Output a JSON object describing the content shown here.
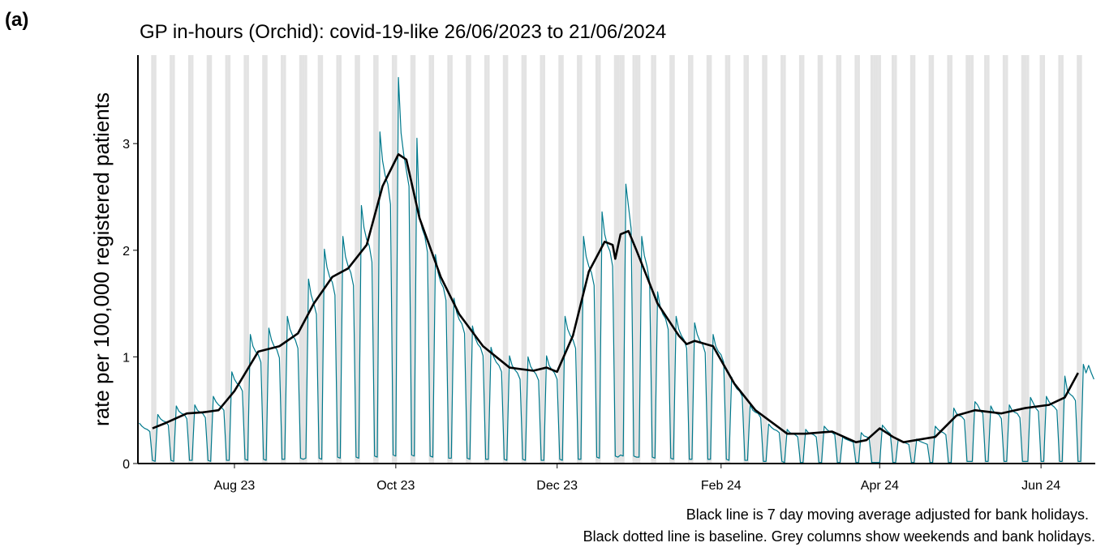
{
  "chart_data": {
    "type": "line",
    "panel_label": "(a)",
    "title": "GP in-hours (Orchid): covid-19-like 26/06/2023 to 21/06/2024",
    "y_label": "rate per 100,000 registered patients",
    "notes": [
      "Black line is 7 day moving average adjusted for bank holidays.",
      "Black dotted line is baseline. Grey columns show weekends and bank holidays."
    ],
    "xlim": [
      -0.5,
      361.5
    ],
    "xticks": [
      {
        "value": 36,
        "label": "Aug 23"
      },
      {
        "value": 97,
        "label": "Oct 23"
      },
      {
        "value": 158,
        "label": "Dec 23"
      },
      {
        "value": 220,
        "label": "Feb 24"
      },
      {
        "value": 280,
        "label": "Apr 24"
      },
      {
        "value": 341,
        "label": "Jun 24"
      }
    ],
    "ylim": [
      0,
      3.83
    ],
    "yticks": [
      0,
      1,
      2,
      3
    ],
    "shade_color": "#e3e3e3",
    "bank_holidays": [
      63,
      182,
      183,
      189,
      277,
      280,
      315,
      336
    ],
    "x": [
      0,
      1,
      2,
      3,
      4,
      5,
      6,
      7,
      8,
      9,
      10,
      11,
      12,
      13,
      14,
      15,
      16,
      17,
      18,
      19,
      20,
      21,
      22,
      23,
      24,
      25,
      26,
      27,
      28,
      29,
      30,
      31,
      32,
      33,
      34,
      35,
      36,
      37,
      38,
      39,
      40,
      41,
      42,
      43,
      44,
      45,
      46,
      47,
      48,
      49,
      50,
      51,
      52,
      53,
      54,
      55,
      56,
      57,
      58,
      59,
      60,
      61,
      62,
      63,
      64,
      65,
      66,
      67,
      68,
      69,
      70,
      71,
      72,
      73,
      74,
      75,
      76,
      77,
      78,
      79,
      80,
      81,
      82,
      83,
      84,
      85,
      86,
      87,
      88,
      89,
      90,
      91,
      92,
      93,
      94,
      95,
      96,
      97,
      98,
      99,
      100,
      101,
      102,
      103,
      104,
      105,
      106,
      107,
      108,
      109,
      110,
      111,
      112,
      113,
      114,
      115,
      116,
      117,
      118,
      119,
      120,
      121,
      122,
      123,
      124,
      125,
      126,
      127,
      128,
      129,
      130,
      131,
      132,
      133,
      134,
      135,
      136,
      137,
      138,
      139,
      140,
      141,
      142,
      143,
      144,
      145,
      146,
      147,
      148,
      149,
      150,
      151,
      152,
      153,
      154,
      155,
      156,
      157,
      158,
      159,
      160,
      161,
      162,
      163,
      164,
      165,
      166,
      167,
      168,
      169,
      170,
      171,
      172,
      173,
      174,
      175,
      176,
      177,
      178,
      179,
      180,
      181,
      182,
      183,
      184,
      185,
      186,
      187,
      188,
      189,
      190,
      191,
      192,
      193,
      194,
      195,
      196,
      197,
      198,
      199,
      200,
      201,
      202,
      203,
      204,
      205,
      206,
      207,
      208,
      209,
      210,
      211,
      212,
      213,
      214,
      215,
      216,
      217,
      218,
      219,
      220,
      221,
      222,
      223,
      224,
      225,
      226,
      227,
      228,
      229,
      230,
      231,
      232,
      233,
      234,
      235,
      236,
      237,
      238,
      239,
      240,
      241,
      242,
      243,
      244,
      245,
      246,
      247,
      248,
      249,
      250,
      251,
      252,
      253,
      254,
      255,
      256,
      257,
      258,
      259,
      260,
      261,
      262,
      263,
      264,
      265,
      266,
      267,
      268,
      269,
      270,
      271,
      272,
      273,
      274,
      275,
      276,
      277,
      278,
      279,
      280,
      281,
      282,
      283,
      284,
      285,
      286,
      287,
      288,
      289,
      290,
      291,
      292,
      293,
      294,
      295,
      296,
      297,
      298,
      299,
      300,
      301,
      302,
      303,
      304,
      305,
      306,
      307,
      308,
      309,
      310,
      311,
      312,
      313,
      314,
      315,
      316,
      317,
      318,
      319,
      320,
      321,
      322,
      323,
      324,
      325,
      326,
      327,
      328,
      329,
      330,
      331,
      332,
      333,
      334,
      335,
      336,
      337,
      338,
      339,
      340,
      341,
      342,
      343,
      344,
      345,
      346,
      347,
      348,
      349,
      350,
      351,
      352,
      353,
      354,
      355,
      356,
      357,
      358,
      359,
      360,
      361
    ],
    "series": [
      {
        "color": "#00798c",
        "values": [
          0.38,
          0.35,
          0.33,
          0.32,
          0.3,
          0.03,
          0.02,
          0.46,
          0.42,
          0.4,
          0.39,
          0.36,
          0.03,
          0.02,
          0.54,
          0.49,
          0.47,
          0.46,
          0.42,
          0.03,
          0.03,
          0.55,
          0.5,
          0.48,
          0.47,
          0.43,
          0.03,
          0.02,
          0.63,
          0.58,
          0.55,
          0.53,
          0.5,
          0.03,
          0.03,
          0.86,
          0.79,
          0.75,
          0.73,
          0.68,
          0.04,
          0.03,
          1.21,
          1.1,
          1.05,
          1.02,
          0.95,
          0.04,
          0.03,
          1.27,
          1.16,
          1.1,
          1.07,
          0.99,
          0.04,
          0.04,
          1.38,
          1.26,
          1.2,
          1.16,
          1.08,
          0.05,
          0.04,
          0.05,
          1.73,
          1.58,
          1.5,
          1.4,
          0.05,
          0.04,
          2.01,
          1.84,
          1.75,
          1.7,
          1.58,
          0.06,
          0.05,
          2.13,
          1.94,
          1.85,
          1.79,
          1.67,
          0.06,
          0.05,
          2.42,
          2.21,
          2.1,
          2.04,
          1.89,
          0.07,
          0.06,
          3.11,
          2.84,
          2.7,
          2.62,
          2.43,
          0.08,
          0.07,
          3.62,
          3.1,
          2.9,
          2.75,
          2.6,
          0.08,
          0.07,
          3.05,
          2.31,
          2.2,
          2.13,
          1.98,
          0.07,
          0.06,
          1.96,
          1.79,
          1.7,
          1.65,
          1.53,
          0.05,
          0.05,
          1.55,
          1.42,
          1.35,
          1.31,
          1.22,
          0.05,
          0.04,
          1.29,
          1.18,
          1.12,
          1.09,
          1.01,
          0.04,
          0.04,
          1.09,
          1.0,
          0.95,
          0.92,
          0.86,
          0.04,
          0.03,
          1.01,
          0.92,
          0.88,
          0.85,
          0.79,
          0.04,
          0.03,
          1.0,
          0.91,
          0.87,
          0.84,
          0.78,
          0.03,
          0.03,
          1.01,
          0.92,
          0.88,
          0.85,
          0.79,
          0.04,
          0.03,
          1.38,
          1.26,
          1.2,
          1.16,
          1.08,
          0.04,
          0.04,
          2.13,
          1.94,
          1.85,
          1.79,
          1.67,
          0.06,
          0.05,
          2.36,
          2.15,
          2.05,
          1.99,
          1.85,
          0.07,
          0.06,
          0.08,
          0.07,
          2.62,
          2.41,
          2.2,
          0.07,
          0.06,
          0.06,
          2.13,
          1.95,
          1.85,
          1.7,
          0.06,
          0.05,
          1.61,
          1.47,
          1.4,
          1.36,
          1.26,
          0.05,
          0.04,
          1.38,
          1.26,
          1.2,
          1.16,
          1.08,
          0.04,
          0.04,
          1.32,
          1.21,
          1.15,
          1.12,
          1.04,
          0.04,
          0.04,
          1.21,
          1.1,
          1.05,
          1.02,
          0.95,
          0.04,
          0.03,
          0.81,
          0.74,
          0.7,
          0.68,
          0.63,
          0.03,
          0.03,
          0.55,
          0.5,
          0.48,
          0.47,
          0.43,
          0.02,
          0.02,
          0.37,
          0.34,
          0.32,
          0.31,
          0.29,
          0.02,
          0.01,
          0.32,
          0.29,
          0.28,
          0.27,
          0.25,
          0.01,
          0.01,
          0.32,
          0.29,
          0.28,
          0.27,
          0.25,
          0.01,
          0.01,
          0.35,
          0.32,
          0.3,
          0.29,
          0.27,
          0.01,
          0.01,
          0.25,
          0.23,
          0.22,
          0.21,
          0.2,
          0.01,
          0.01,
          0.29,
          0.26,
          0.25,
          0.24,
          0.01,
          0.01,
          0.01,
          0.01,
          0.36,
          0.33,
          0.3,
          0.28,
          0.01,
          0.01,
          0.23,
          0.21,
          0.2,
          0.19,
          0.18,
          0.01,
          0.01,
          0.23,
          0.21,
          0.2,
          0.19,
          0.18,
          0.01,
          0.01,
          0.35,
          0.32,
          0.3,
          0.29,
          0.27,
          0.01,
          0.01,
          0.52,
          0.47,
          0.45,
          0.44,
          0.41,
          0.02,
          0.02,
          0.02,
          0.58,
          0.55,
          0.5,
          0.47,
          0.02,
          0.02,
          0.54,
          0.49,
          0.47,
          0.46,
          0.42,
          0.02,
          0.02,
          0.55,
          0.5,
          0.48,
          0.47,
          0.43,
          0.02,
          0.02,
          0.02,
          0.62,
          0.57,
          0.52,
          0.49,
          0.02,
          0.02,
          0.63,
          0.58,
          0.55,
          0.53,
          0.5,
          0.02,
          0.02,
          0.82,
          0.68,
          0.65,
          0.63,
          0.59,
          0.02,
          0.02,
          0.93,
          0.85,
          0.92,
          0.85,
          0.79
        ]
      },
      {
        "color": "#000000",
        "x": [
          5,
          10,
          18,
          24,
          30,
          36,
          45,
          53,
          60,
          66,
          73,
          79,
          86,
          92,
          98,
          101,
          106,
          114,
          121,
          130,
          140,
          149,
          154,
          158,
          164,
          170,
          176,
          179,
          180,
          182,
          185,
          188,
          196,
          204,
          207,
          210,
          217,
          225,
          233,
          245,
          252,
          262,
          271,
          275,
          280,
          285,
          289,
          301,
          309,
          316,
          326,
          335,
          344,
          350,
          355
        ],
        "values": [
          0.33,
          0.38,
          0.47,
          0.48,
          0.5,
          0.68,
          1.05,
          1.1,
          1.22,
          1.5,
          1.75,
          1.83,
          2.05,
          2.6,
          2.9,
          2.85,
          2.3,
          1.75,
          1.4,
          1.1,
          0.9,
          0.87,
          0.9,
          0.86,
          1.2,
          1.8,
          2.08,
          2.05,
          1.92,
          2.15,
          2.18,
          2.0,
          1.5,
          1.2,
          1.12,
          1.15,
          1.1,
          0.75,
          0.5,
          0.28,
          0.28,
          0.3,
          0.2,
          0.22,
          0.33,
          0.25,
          0.2,
          0.25,
          0.45,
          0.5,
          0.47,
          0.52,
          0.55,
          0.62,
          0.85
        ]
      }
    ]
  }
}
